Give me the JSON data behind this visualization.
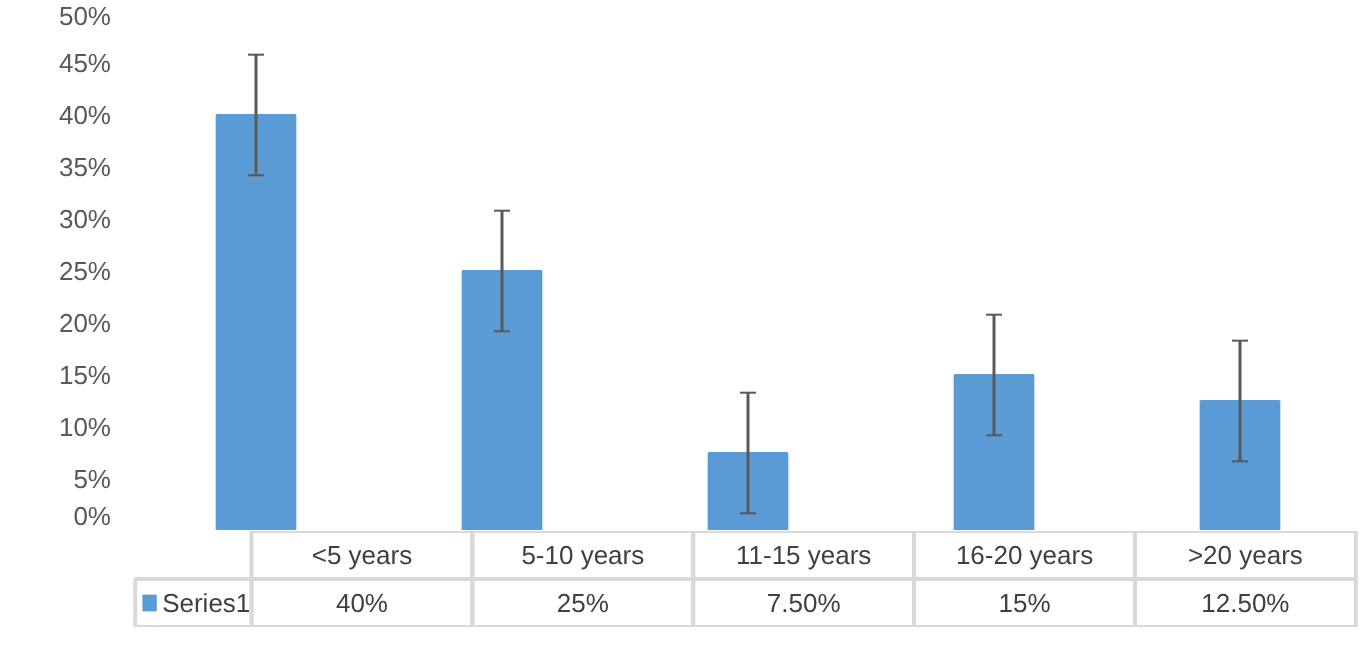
{
  "chart_data": {
    "type": "bar",
    "categories": [
      "<5 years",
      "5-10 years",
      "11-15 years",
      "16-20 years",
      ">20 years"
    ],
    "series": [
      {
        "name": "Series1",
        "color": "#5b9bd5",
        "values": [
          40,
          25,
          7.5,
          15,
          12.5
        ],
        "errors": [
          5.8,
          5.8,
          5.8,
          5.8,
          5.8
        ],
        "value_labels": [
          "40%",
          "25%",
          "7.50%",
          "15%",
          "12.50%"
        ]
      }
    ],
    "ylim": [
      0,
      50
    ],
    "yticks": [
      {
        "value": 0,
        "label": "0%"
      },
      {
        "value": 5,
        "label": "5%"
      },
      {
        "value": 10,
        "label": "10%"
      },
      {
        "value": 15,
        "label": "15%"
      },
      {
        "value": 20,
        "label": "20%"
      },
      {
        "value": 25,
        "label": "25%"
      },
      {
        "value": 30,
        "label": "30%"
      },
      {
        "value": 35,
        "label": "35%"
      },
      {
        "value": 40,
        "label": "40%"
      },
      {
        "value": 45,
        "label": "45%"
      },
      {
        "value": 50,
        "label": "50%"
      }
    ],
    "legend": "bottom left",
    "grid": false
  }
}
